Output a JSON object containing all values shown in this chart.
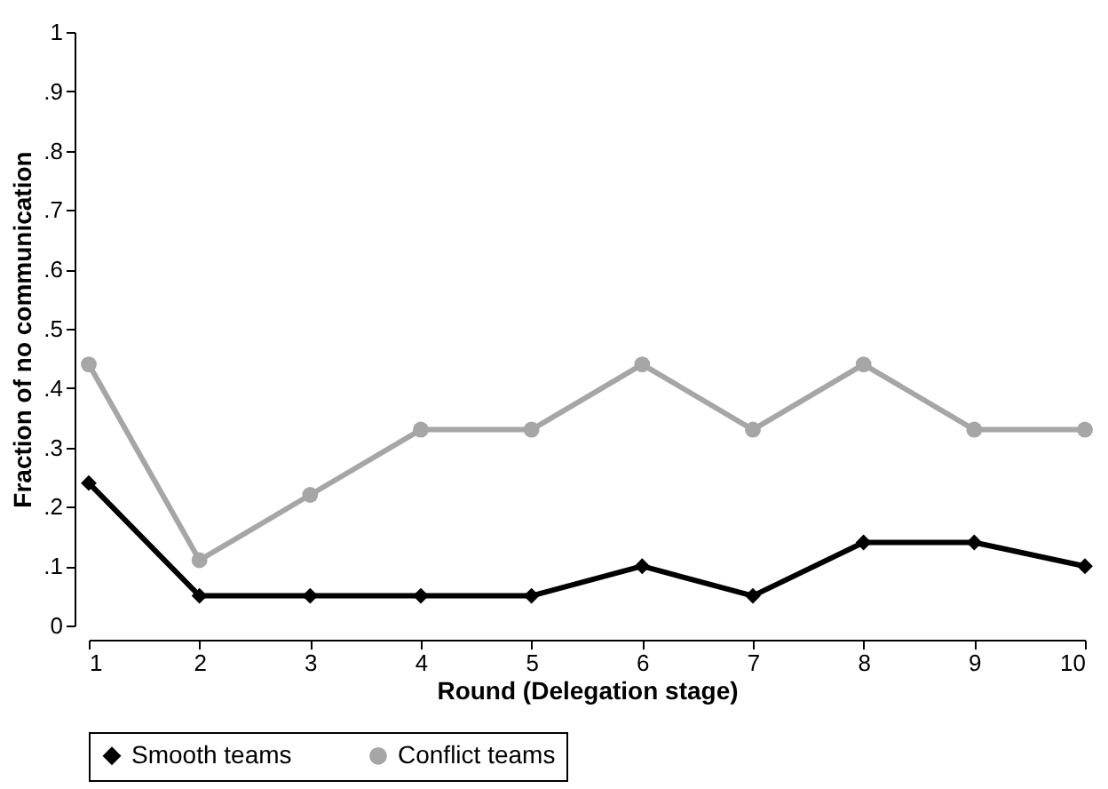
{
  "chart_data": {
    "type": "line",
    "xlabel": "Round (Delegation stage)",
    "ylabel": "Fraction of no communication",
    "x": [
      1,
      2,
      3,
      4,
      5,
      6,
      7,
      8,
      9,
      10
    ],
    "series": [
      {
        "name": "Smooth teams",
        "color": "#000000",
        "marker": "diamond",
        "values": [
          0.24,
          0.05,
          0.05,
          0.05,
          0.05,
          0.1,
          0.05,
          0.14,
          0.14,
          0.1
        ]
      },
      {
        "name": "Conflict teams",
        "color": "#a6a6a6",
        "marker": "circle",
        "values": [
          0.44,
          0.11,
          0.22,
          0.33,
          0.33,
          0.44,
          0.33,
          0.44,
          0.33,
          0.33
        ]
      }
    ],
    "xlim": [
      1,
      10
    ],
    "xticks": [
      1,
      2,
      3,
      4,
      5,
      6,
      7,
      8,
      9,
      10
    ],
    "ylim": [
      0,
      1
    ],
    "yticks": [
      {
        "value": 0,
        "label": "0"
      },
      {
        "value": 0.1,
        "label": ".1"
      },
      {
        "value": 0.2,
        "label": ".2"
      },
      {
        "value": 0.3,
        "label": ".3"
      },
      {
        "value": 0.4,
        "label": ".4"
      },
      {
        "value": 0.5,
        "label": ".5"
      },
      {
        "value": 0.6,
        "label": ".6"
      },
      {
        "value": 0.7,
        "label": ".7"
      },
      {
        "value": 0.8,
        "label": ".8"
      },
      {
        "value": 0.9,
        "label": ".9"
      },
      {
        "value": 1,
        "label": "1"
      }
    ],
    "grid": false,
    "legend": "bottom",
    "line_style": "solid"
  }
}
